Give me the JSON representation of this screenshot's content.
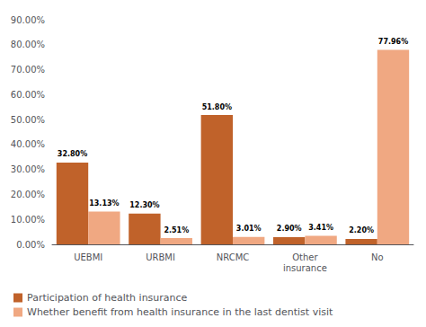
{
  "chart_data": {
    "type": "bar",
    "categories": [
      "UEBMI",
      "URBMI",
      "NRCMC",
      "Other\ninsurance",
      "No"
    ],
    "series": [
      {
        "name": "Participation of health insurance",
        "color": "#C0622A",
        "values": [
          32.8,
          12.3,
          51.8,
          2.9,
          2.2
        ],
        "value_labels": [
          "32.80%",
          "12.30%",
          "51.80%",
          "2.90%",
          "2.20%"
        ]
      },
      {
        "name": "Whether benefit from health insurance in the last dentist visit",
        "color": "#F0A882",
        "values": [
          13.13,
          2.51,
          3.01,
          3.41,
          77.96
        ],
        "value_labels": [
          "13.13%",
          "2.51%",
          "3.01%",
          "3.41%",
          "77.96%"
        ]
      }
    ],
    "ylim": [
      0,
      90
    ],
    "yticks": [
      {
        "value": 0,
        "label": "0.00%"
      },
      {
        "value": 10,
        "label": "10.00%"
      },
      {
        "value": 20,
        "label": "20.00%"
      },
      {
        "value": 30,
        "label": "30.00%"
      },
      {
        "value": 40,
        "label": "40.00%"
      },
      {
        "value": 50,
        "label": "50.00%"
      },
      {
        "value": 60,
        "label": "60.00%"
      },
      {
        "value": 70,
        "label": "70.00%"
      },
      {
        "value": 80,
        "label": "80.00%"
      },
      {
        "value": 90,
        "label": "90.00%"
      }
    ],
    "grid": false,
    "legend": "bottom",
    "data_labels": true
  }
}
